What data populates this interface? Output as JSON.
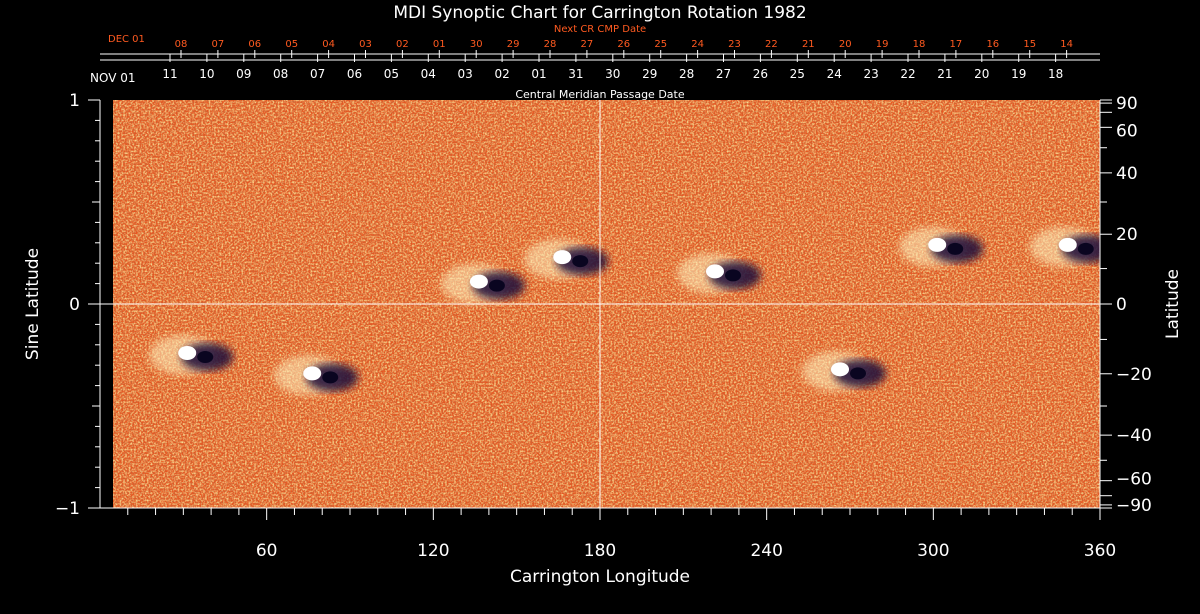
{
  "chart_data": {
    "type": "heatmap",
    "title": "MDI Synoptic Chart for Carrington Rotation 1982",
    "xlabel": "Carrington Longitude",
    "ylabel_left": "Sine Latitude",
    "ylabel_right": "Latitude",
    "xlim": [
      0,
      360
    ],
    "ylim": [
      -1,
      1
    ],
    "x_ticks": [
      60,
      120,
      180,
      240,
      300,
      360
    ],
    "x_tick_labels": [
      "60",
      "120",
      "180",
      "240",
      "300",
      "360"
    ],
    "y_left_ticks": [
      1,
      0,
      -1
    ],
    "y_left_tick_labels": [
      "1",
      "0",
      "−1"
    ],
    "y_right_ticks_deg": [
      90,
      60,
      40,
      20,
      0,
      -20,
      -40,
      -60,
      -90
    ],
    "y_right_tick_labels": [
      "90",
      "60",
      "40",
      "20",
      "0",
      "−20",
      "−40",
      "−60",
      "−90"
    ],
    "cmp_axis_label": "Central Meridian Passage Date",
    "cmp_month_label": "NOV 01",
    "cmp_dates": [
      "11",
      "10",
      "09",
      "08",
      "07",
      "06",
      "05",
      "04",
      "03",
      "02",
      "01",
      "31",
      "30",
      "29",
      "28",
      "27",
      "26",
      "25",
      "24",
      "23",
      "22",
      "21",
      "20",
      "19",
      "18"
    ],
    "next_cr_axis_label": "Next CR CMP Date",
    "next_cr_month_label": "DEC 01",
    "next_cr_dates": [
      "08",
      "07",
      "06",
      "05",
      "04",
      "03",
      "02",
      "01",
      "30",
      "29",
      "28",
      "27",
      "26",
      "25",
      "24",
      "23",
      "22",
      "21",
      "20",
      "19",
      "18",
      "17",
      "16",
      "15",
      "14"
    ],
    "crosshair": {
      "longitude": 180,
      "sine_latitude": 0
    },
    "colors": {
      "background": "#000000",
      "map_base": "#e8541e",
      "positive_field": "#fff2c0",
      "negative_field": "#1a0d3a",
      "next_cr_text": "#ff5a20",
      "axis": "#ffffff"
    },
    "active_regions": [
      {
        "lon": 35,
        "sinlat": -0.25,
        "polarity": "bipolar"
      },
      {
        "lon": 80,
        "sinlat": -0.35,
        "polarity": "bipolar"
      },
      {
        "lon": 140,
        "sinlat": 0.1,
        "polarity": "bipolar"
      },
      {
        "lon": 170,
        "sinlat": 0.22,
        "polarity": "bipolar"
      },
      {
        "lon": 225,
        "sinlat": 0.15,
        "polarity": "bipolar"
      },
      {
        "lon": 270,
        "sinlat": -0.33,
        "polarity": "bipolar"
      },
      {
        "lon": 305,
        "sinlat": 0.28,
        "polarity": "bipolar"
      },
      {
        "lon": 352,
        "sinlat": 0.28,
        "polarity": "bipolar"
      }
    ]
  }
}
